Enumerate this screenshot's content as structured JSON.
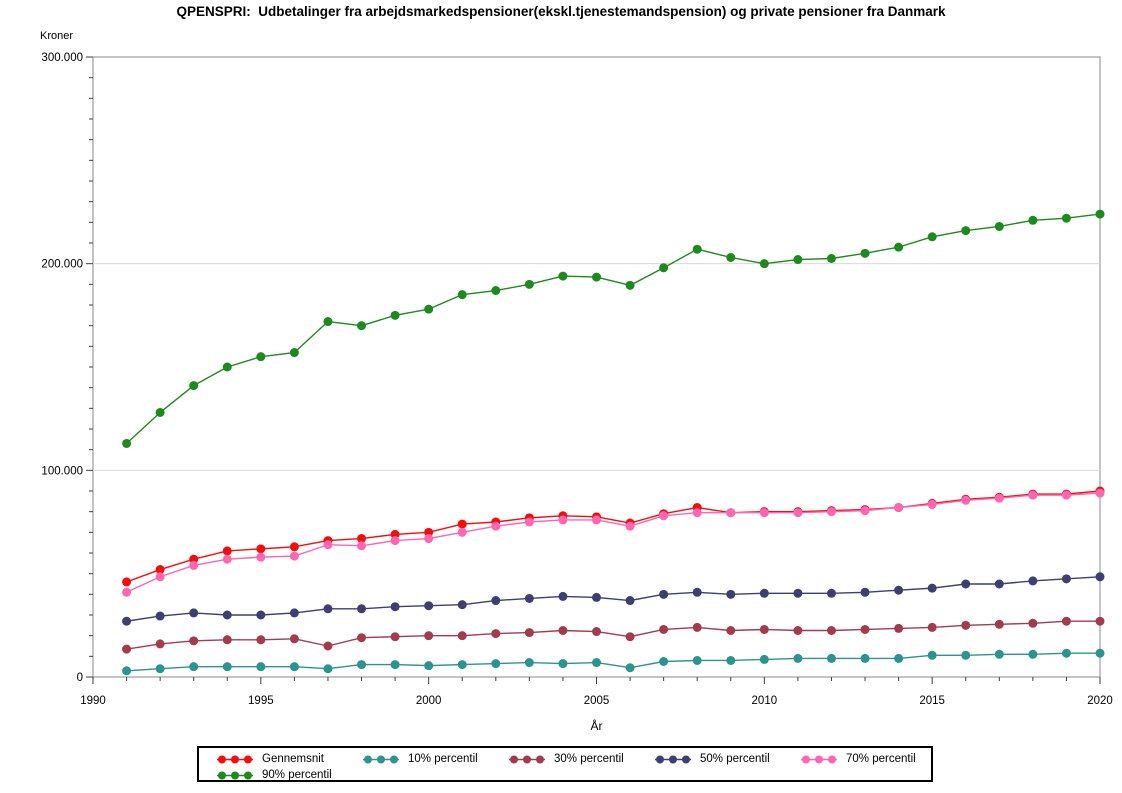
{
  "chart_data": {
    "type": "line",
    "title": "QPENSPRI:  Udbetalinger fra arbejdsmarkedspensioner(ekskl.tjenestemandspension) og private pensioner fra Danmark",
    "xlabel": "År",
    "ylabel": "Kroner",
    "xlim": [
      1990,
      2020
    ],
    "ylim": [
      0,
      300000
    ],
    "x_major_ticks": [
      1990,
      1995,
      2000,
      2005,
      2010,
      2015,
      2020
    ],
    "x_minor_step": 1,
    "y_major_ticks": [
      0,
      100000,
      200000,
      300000
    ],
    "y_tick_labels": [
      "0",
      "100.000",
      "200.000",
      "300.000"
    ],
    "y_minor_step": 10000,
    "grid": "horizontal-major-light-gray",
    "legend_position": "bottom-boxed",
    "x": [
      1991,
      1992,
      1993,
      1994,
      1995,
      1996,
      1997,
      1998,
      1999,
      2000,
      2001,
      2002,
      2003,
      2004,
      2005,
      2006,
      2007,
      2008,
      2009,
      2010,
      2011,
      2012,
      2013,
      2014,
      2015,
      2016,
      2017,
      2018,
      2019,
      2020
    ],
    "series": [
      {
        "name": "Gennemsnit",
        "color": "#f50d0d",
        "values": [
          46000,
          52000,
          57000,
          61000,
          62000,
          63000,
          66000,
          67000,
          69000,
          70000,
          74000,
          75000,
          77000,
          78000,
          77500,
          74500,
          79000,
          82000,
          79500,
          80000,
          80000,
          80500,
          81000,
          82000,
          84000,
          86000,
          87000,
          88500,
          88500,
          90000
        ]
      },
      {
        "name": "10% percentil",
        "color": "#2b948e",
        "values": [
          3000,
          4000,
          5000,
          5000,
          5000,
          5000,
          4000,
          6000,
          6000,
          5500,
          6000,
          6500,
          7000,
          6500,
          7000,
          4500,
          7500,
          8000,
          8000,
          8500,
          9000,
          9000,
          9000,
          9000,
          10500,
          10500,
          11000,
          11000,
          11500,
          11500
        ]
      },
      {
        "name": "30% percentil",
        "color": "#a23b50",
        "values": [
          13500,
          16000,
          17500,
          18000,
          18000,
          18500,
          15000,
          19000,
          19500,
          20000,
          20000,
          21000,
          21500,
          22500,
          22000,
          19500,
          23000,
          24000,
          22500,
          23000,
          22500,
          22500,
          23000,
          23500,
          24000,
          25000,
          25500,
          26000,
          27000,
          27000
        ]
      },
      {
        "name": "50% percentil",
        "color": "#3e3e72",
        "values": [
          27000,
          29500,
          31000,
          30000,
          30000,
          31000,
          33000,
          33000,
          34000,
          34500,
          35000,
          37000,
          38000,
          39000,
          38500,
          37000,
          40000,
          41000,
          40000,
          40500,
          40500,
          40500,
          41000,
          42000,
          43000,
          45000,
          45000,
          46500,
          47500,
          48500
        ]
      },
      {
        "name": "70% percentil",
        "color": "#ff66b2",
        "values": [
          41000,
          48500,
          54000,
          57000,
          58000,
          58500,
          64000,
          63500,
          66000,
          67000,
          70000,
          73000,
          75000,
          76000,
          76000,
          73000,
          78000,
          79500,
          79500,
          79500,
          79500,
          80000,
          80500,
          82000,
          83500,
          85500,
          86500,
          88000,
          88000,
          89000
        ]
      },
      {
        "name": "90% percentil",
        "color": "#1d8a1d",
        "values": [
          113000,
          128000,
          141000,
          150000,
          155000,
          157000,
          172000,
          170000,
          175000,
          178000,
          185000,
          187000,
          190000,
          194000,
          193500,
          189500,
          198000,
          207000,
          203000,
          200000,
          202000,
          202500,
          205000,
          208000,
          213000,
          216000,
          218000,
          221000,
          222000,
          224000
        ]
      }
    ],
    "style": {
      "plot_border_color": "#8a8a8a",
      "gridline_color": "#d9d9d9",
      "tick_color": "#3c3c3c",
      "marker_radius": 4.5
    }
  }
}
